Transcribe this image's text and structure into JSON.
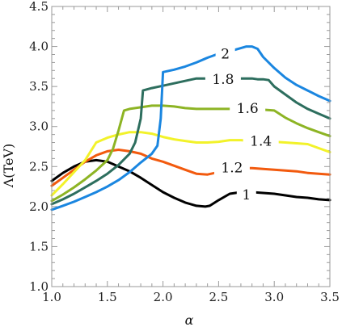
{
  "chart_data": {
    "type": "line",
    "title": "",
    "xlabel": "α",
    "ylabel": "Λ(TeV)",
    "xlim": [
      1.0,
      3.5
    ],
    "ylim": [
      1.0,
      4.5
    ],
    "x_ticks": [
      "1.0",
      "1.5",
      "2.0",
      "2.5",
      "3.0",
      "3.5"
    ],
    "y_ticks": [
      "1.0",
      "1.5",
      "2.0",
      "2.5",
      "3.0",
      "3.5",
      "4.0",
      "4.5"
    ],
    "grid": false,
    "series": [
      {
        "name": "1",
        "color": "#000000",
        "label_at": [
          2.75,
          2.15
        ],
        "points": [
          [
            1.0,
            2.32
          ],
          [
            1.1,
            2.42
          ],
          [
            1.2,
            2.5
          ],
          [
            1.3,
            2.56
          ],
          [
            1.4,
            2.58
          ],
          [
            1.5,
            2.56
          ],
          [
            1.6,
            2.5
          ],
          [
            1.7,
            2.44
          ],
          [
            1.8,
            2.36
          ],
          [
            1.9,
            2.27
          ],
          [
            2.0,
            2.18
          ],
          [
            2.1,
            2.11
          ],
          [
            2.2,
            2.05
          ],
          [
            2.3,
            2.01
          ],
          [
            2.38,
            2.0
          ],
          [
            2.42,
            2.01
          ],
          [
            2.5,
            2.08
          ],
          [
            2.6,
            2.16
          ],
          [
            2.7,
            2.18
          ],
          [
            2.8,
            2.18
          ],
          [
            2.9,
            2.17
          ],
          [
            3.0,
            2.16
          ],
          [
            3.1,
            2.14
          ],
          [
            3.2,
            2.12
          ],
          [
            3.3,
            2.11
          ],
          [
            3.4,
            2.09
          ],
          [
            3.5,
            2.08
          ]
        ]
      },
      {
        "name": "1.2",
        "color": "#f25a0e",
        "label_at": [
          2.62,
          2.49
        ],
        "points": [
          [
            1.0,
            2.26
          ],
          [
            1.1,
            2.36
          ],
          [
            1.2,
            2.46
          ],
          [
            1.3,
            2.56
          ],
          [
            1.4,
            2.64
          ],
          [
            1.5,
            2.69
          ],
          [
            1.6,
            2.71
          ],
          [
            1.7,
            2.69
          ],
          [
            1.8,
            2.66
          ],
          [
            1.9,
            2.6
          ],
          [
            2.0,
            2.56
          ],
          [
            2.1,
            2.51
          ],
          [
            2.2,
            2.46
          ],
          [
            2.3,
            2.41
          ],
          [
            2.4,
            2.4
          ],
          [
            2.5,
            2.43
          ],
          [
            2.6,
            2.47
          ],
          [
            2.7,
            2.48
          ],
          [
            2.8,
            2.48
          ],
          [
            2.9,
            2.47
          ],
          [
            3.0,
            2.46
          ],
          [
            3.1,
            2.45
          ],
          [
            3.2,
            2.44
          ],
          [
            3.3,
            2.42
          ],
          [
            3.4,
            2.41
          ],
          [
            3.5,
            2.4
          ]
        ]
      },
      {
        "name": "1.4",
        "color": "#f2f22a",
        "label_at": [
          2.88,
          2.82
        ],
        "points": [
          [
            1.0,
            2.14
          ],
          [
            1.1,
            2.28
          ],
          [
            1.2,
            2.43
          ],
          [
            1.3,
            2.58
          ],
          [
            1.4,
            2.8
          ],
          [
            1.5,
            2.86
          ],
          [
            1.6,
            2.9
          ],
          [
            1.7,
            2.93
          ],
          [
            1.8,
            2.93
          ],
          [
            1.9,
            2.91
          ],
          [
            2.0,
            2.87
          ],
          [
            2.1,
            2.84
          ],
          [
            2.2,
            2.82
          ],
          [
            2.3,
            2.8
          ],
          [
            2.4,
            2.8
          ],
          [
            2.5,
            2.81
          ],
          [
            2.6,
            2.83
          ],
          [
            2.7,
            2.83
          ],
          [
            2.8,
            2.82
          ],
          [
            2.9,
            2.81
          ],
          [
            3.0,
            2.81
          ],
          [
            3.1,
            2.8
          ],
          [
            3.2,
            2.79
          ],
          [
            3.3,
            2.78
          ],
          [
            3.4,
            2.73
          ],
          [
            3.5,
            2.68
          ]
        ]
      },
      {
        "name": "1.6",
        "color": "#8db424",
        "label_at": [
          2.76,
          3.23
        ],
        "points": [
          [
            1.0,
            2.07
          ],
          [
            1.1,
            2.15
          ],
          [
            1.2,
            2.24
          ],
          [
            1.3,
            2.34
          ],
          [
            1.4,
            2.45
          ],
          [
            1.5,
            2.58
          ],
          [
            1.55,
            2.72
          ],
          [
            1.6,
            2.95
          ],
          [
            1.65,
            3.2
          ],
          [
            1.7,
            3.22
          ],
          [
            1.8,
            3.24
          ],
          [
            1.9,
            3.26
          ],
          [
            2.0,
            3.26
          ],
          [
            2.1,
            3.25
          ],
          [
            2.2,
            3.23
          ],
          [
            2.3,
            3.22
          ],
          [
            2.4,
            3.22
          ],
          [
            2.5,
            3.22
          ],
          [
            2.6,
            3.22
          ],
          [
            2.7,
            3.22
          ],
          [
            2.8,
            3.21
          ],
          [
            2.9,
            3.21
          ],
          [
            3.0,
            3.2
          ],
          [
            3.1,
            3.11
          ],
          [
            3.2,
            3.04
          ],
          [
            3.3,
            2.98
          ],
          [
            3.4,
            2.93
          ],
          [
            3.5,
            2.88
          ]
        ]
      },
      {
        "name": "1.8",
        "color": "#2d6e5e",
        "label_at": [
          2.54,
          3.59
        ],
        "points": [
          [
            1.0,
            2.03
          ],
          [
            1.1,
            2.09
          ],
          [
            1.2,
            2.16
          ],
          [
            1.3,
            2.24
          ],
          [
            1.4,
            2.32
          ],
          [
            1.5,
            2.41
          ],
          [
            1.6,
            2.52
          ],
          [
            1.7,
            2.66
          ],
          [
            1.75,
            2.8
          ],
          [
            1.8,
            3.1
          ],
          [
            1.82,
            3.45
          ],
          [
            1.9,
            3.48
          ],
          [
            2.0,
            3.51
          ],
          [
            2.1,
            3.54
          ],
          [
            2.2,
            3.57
          ],
          [
            2.3,
            3.6
          ],
          [
            2.4,
            3.6
          ],
          [
            2.5,
            3.6
          ],
          [
            2.6,
            3.6
          ],
          [
            2.7,
            3.6
          ],
          [
            2.8,
            3.6
          ],
          [
            2.85,
            3.59
          ],
          [
            2.9,
            3.59
          ],
          [
            2.95,
            3.58
          ],
          [
            3.0,
            3.5
          ],
          [
            3.1,
            3.4
          ],
          [
            3.2,
            3.3
          ],
          [
            3.3,
            3.22
          ],
          [
            3.4,
            3.16
          ],
          [
            3.5,
            3.1
          ]
        ]
      },
      {
        "name": "2",
        "color": "#1a86e0",
        "label_at": [
          2.56,
          3.91
        ],
        "points": [
          [
            1.0,
            1.96
          ],
          [
            1.1,
            2.01
          ],
          [
            1.2,
            2.06
          ],
          [
            1.3,
            2.12
          ],
          [
            1.4,
            2.18
          ],
          [
            1.5,
            2.25
          ],
          [
            1.6,
            2.33
          ],
          [
            1.7,
            2.43
          ],
          [
            1.8,
            2.55
          ],
          [
            1.9,
            2.66
          ],
          [
            1.95,
            2.76
          ],
          [
            1.98,
            3.1
          ],
          [
            2.0,
            3.68
          ],
          [
            2.1,
            3.71
          ],
          [
            2.2,
            3.75
          ],
          [
            2.3,
            3.8
          ],
          [
            2.4,
            3.86
          ],
          [
            2.5,
            3.91
          ],
          [
            2.6,
            3.94
          ],
          [
            2.7,
            3.98
          ],
          [
            2.75,
            4.0
          ],
          [
            2.8,
            4.0
          ],
          [
            2.85,
            3.97
          ],
          [
            2.9,
            3.87
          ],
          [
            3.0,
            3.73
          ],
          [
            3.1,
            3.61
          ],
          [
            3.2,
            3.52
          ],
          [
            3.3,
            3.45
          ],
          [
            3.4,
            3.38
          ],
          [
            3.5,
            3.32
          ]
        ]
      }
    ]
  }
}
